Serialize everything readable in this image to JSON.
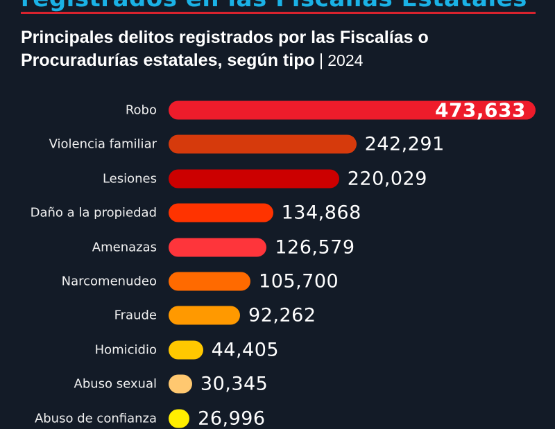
{
  "header": {
    "top_title": "registrados en las Fiscalías Estatales",
    "subtitle_bold": "Principales delitos registrados por las Fiscalías o Procuradurías estatales, según tipo",
    "separator": "|",
    "year": "2024"
  },
  "colors": {
    "background": "#131b27",
    "title_accent": "#1ab2e6",
    "divider": "#d8232e"
  },
  "chart_data": {
    "type": "bar",
    "orientation": "horizontal",
    "title": "Principales delitos registrados por las Fiscalías o Procuradurías estatales, según tipo | 2024",
    "xlabel": "",
    "ylabel": "",
    "grid": false,
    "legend": "none",
    "categories": [
      "Robo",
      "Violencia familiar",
      "Lesiones",
      "Daño a la propiedad",
      "Amenazas",
      "Narcomenudeo",
      "Fraude",
      "Homicidio",
      "Abuso sexual",
      "Abuso de confianza"
    ],
    "values": [
      473633,
      242291,
      220029,
      134868,
      126579,
      105700,
      92262,
      44405,
      30345,
      26996
    ],
    "value_labels": [
      "473,633",
      "242,291",
      "220,029",
      "134,868",
      "126,579",
      "105,700",
      "92,262",
      "44,405",
      "30,345",
      "26,996"
    ],
    "bar_colors": [
      "#ee1c2b",
      "#d63a0c",
      "#cc0000",
      "#ff3300",
      "#fe353b",
      "#ff6a00",
      "#ff9900",
      "#ffc800",
      "#ffc870",
      "#ffee00"
    ],
    "xlim": [
      0,
      473633
    ]
  }
}
